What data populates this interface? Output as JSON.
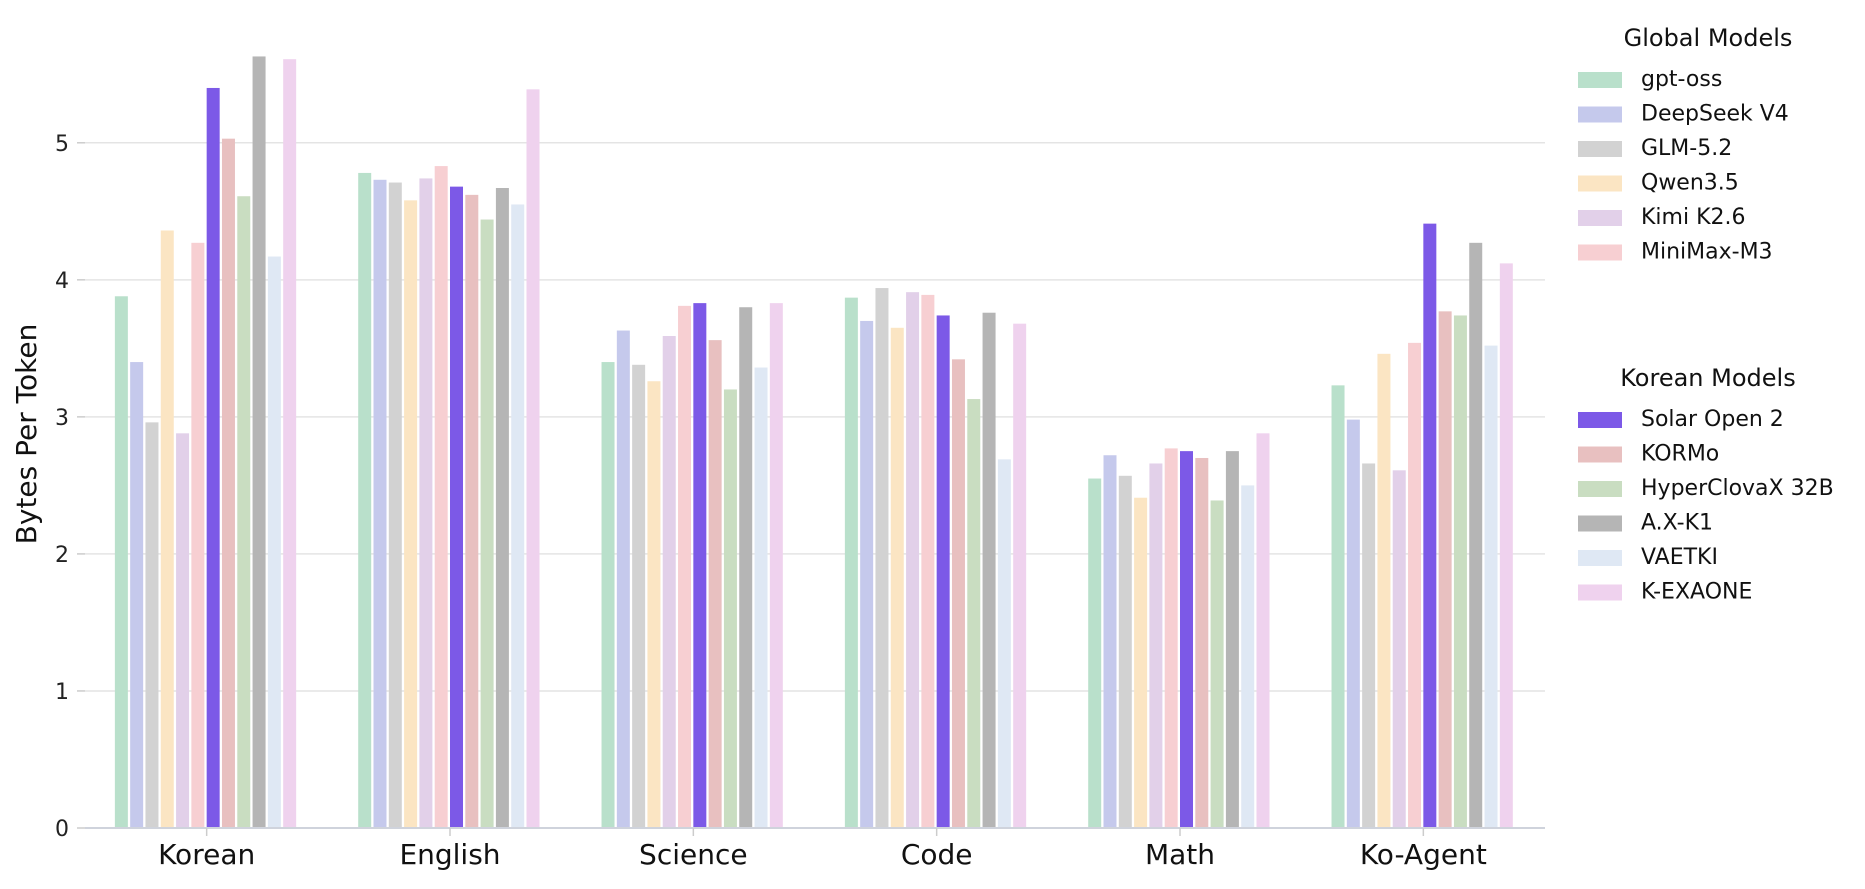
{
  "chart_data": {
    "type": "bar",
    "title": "",
    "xlabel": "",
    "ylabel": "Bytes Per Token",
    "ylim": [
      0,
      5.75
    ],
    "yticks": [
      0,
      1,
      2,
      3,
      4,
      5
    ],
    "grid": "horizontal",
    "legend_placement": "right",
    "categories": [
      "Korean",
      "English",
      "Science",
      "Code",
      "Math",
      "Ko-Agent"
    ],
    "legend_groups": [
      {
        "title": "Global Models",
        "series_names": [
          "gpt-oss",
          "DeepSeek V4",
          "GLM-5.2",
          "Qwen3.5",
          "Kimi K2.6",
          "MiniMax-M3"
        ]
      },
      {
        "title": "Korean Models",
        "series_names": [
          "Solar Open 2",
          "KORMo",
          "HyperClovaX 32B",
          "A.X-K1",
          "VAETKI",
          "K-EXAONE"
        ]
      }
    ],
    "series": [
      {
        "name": "gpt-oss",
        "color": "#b9e0cb",
        "values": [
          3.88,
          4.78,
          3.4,
          3.87,
          2.55,
          3.23
        ]
      },
      {
        "name": "DeepSeek V4",
        "color": "#c5c9ec",
        "values": [
          3.4,
          4.73,
          3.63,
          3.7,
          2.72,
          2.98
        ]
      },
      {
        "name": "GLM-5.2",
        "color": "#d2d2d2",
        "values": [
          2.96,
          4.71,
          3.38,
          3.94,
          2.57,
          2.66
        ]
      },
      {
        "name": "Qwen3.5",
        "color": "#fbe5c3",
        "values": [
          4.36,
          4.58,
          3.26,
          3.65,
          2.41,
          3.46
        ]
      },
      {
        "name": "Kimi K2.6",
        "color": "#e2d0e9",
        "values": [
          2.88,
          4.74,
          3.59,
          3.91,
          2.66,
          2.61
        ]
      },
      {
        "name": "MiniMax-M3",
        "color": "#f7cfd2",
        "values": [
          4.27,
          4.83,
          3.81,
          3.89,
          2.77,
          3.54
        ]
      },
      {
        "name": "Solar Open 2",
        "color": "#7c59e7",
        "values": [
          5.4,
          4.68,
          3.83,
          3.74,
          2.75,
          4.41
        ]
      },
      {
        "name": "KORMo",
        "color": "#e8c0c0",
        "values": [
          5.03,
          4.62,
          3.56,
          3.42,
          2.7,
          3.77
        ]
      },
      {
        "name": "HyperClovaX 32B",
        "color": "#c9ddc1",
        "values": [
          4.61,
          4.44,
          3.2,
          3.13,
          2.39,
          3.74
        ]
      },
      {
        "name": "A.X-K1",
        "color": "#b5b5b5",
        "values": [
          5.63,
          4.67,
          3.8,
          3.76,
          2.75,
          4.27
        ]
      },
      {
        "name": "VAETKI",
        "color": "#dfe8f4",
        "values": [
          4.17,
          4.55,
          3.36,
          2.69,
          2.5,
          3.52
        ]
      },
      {
        "name": "K-EXAONE",
        "color": "#efd2ee",
        "values": [
          5.61,
          5.39,
          3.83,
          3.68,
          2.88,
          4.12
        ]
      }
    ]
  }
}
